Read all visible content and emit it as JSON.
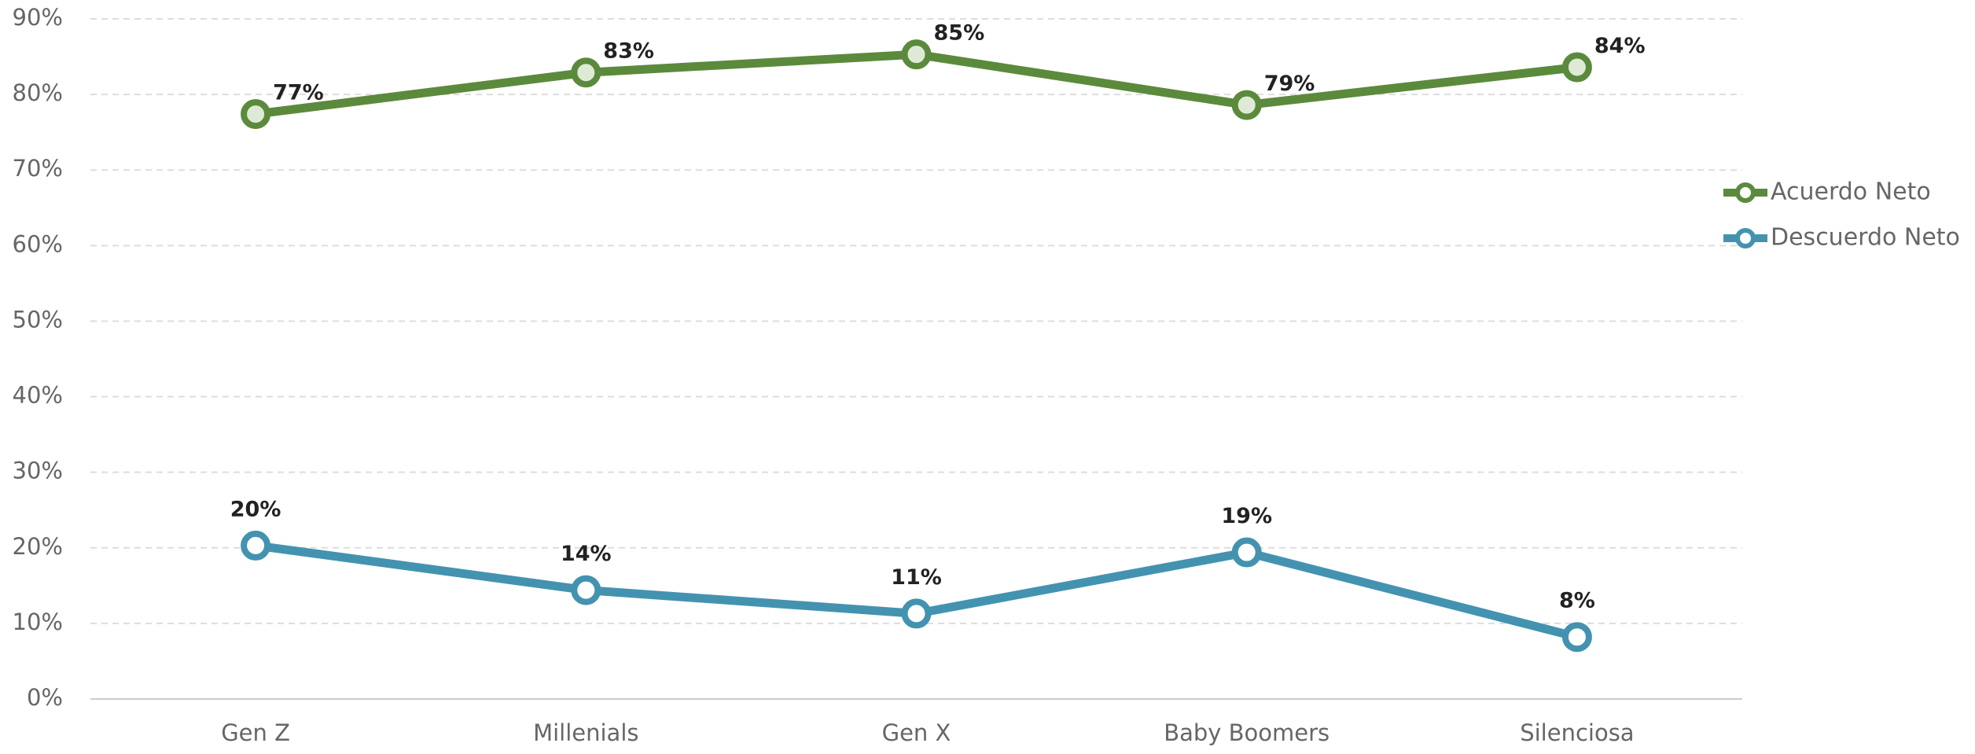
{
  "chart_data": {
    "type": "line",
    "categories": [
      "Gen Z",
      "Millenials",
      "Gen X",
      "Baby Boomers",
      "Silenciosa"
    ],
    "series": [
      {
        "name": "Acuerdo Neto",
        "color": "#5b8a3c",
        "values": [
          77.4,
          82.9,
          85.3,
          78.6,
          83.6
        ],
        "value_labels": [
          "77%",
          "83%",
          "85%",
          "79%",
          "84%"
        ]
      },
      {
        "name": "Descuerdo Neto",
        "color": "#4393b0",
        "values": [
          20.3,
          14.4,
          11.3,
          19.4,
          8.2
        ],
        "value_labels": [
          "20%",
          "14%",
          "11%",
          "19%",
          "8%"
        ]
      }
    ],
    "ylim": [
      0,
      90
    ],
    "yticks": [
      {
        "value": 0,
        "label": "0%"
      },
      {
        "value": 10,
        "label": "10%"
      },
      {
        "value": 20,
        "label": "20%"
      },
      {
        "value": 30,
        "label": "30%"
      },
      {
        "value": 40,
        "label": "40%"
      },
      {
        "value": 50,
        "label": "50%"
      },
      {
        "value": 60,
        "label": "60%"
      },
      {
        "value": 70,
        "label": "70%"
      },
      {
        "value": 80,
        "label": "80%"
      },
      {
        "value": 90,
        "label": "90%"
      }
    ],
    "grid": true,
    "legend": "right"
  }
}
